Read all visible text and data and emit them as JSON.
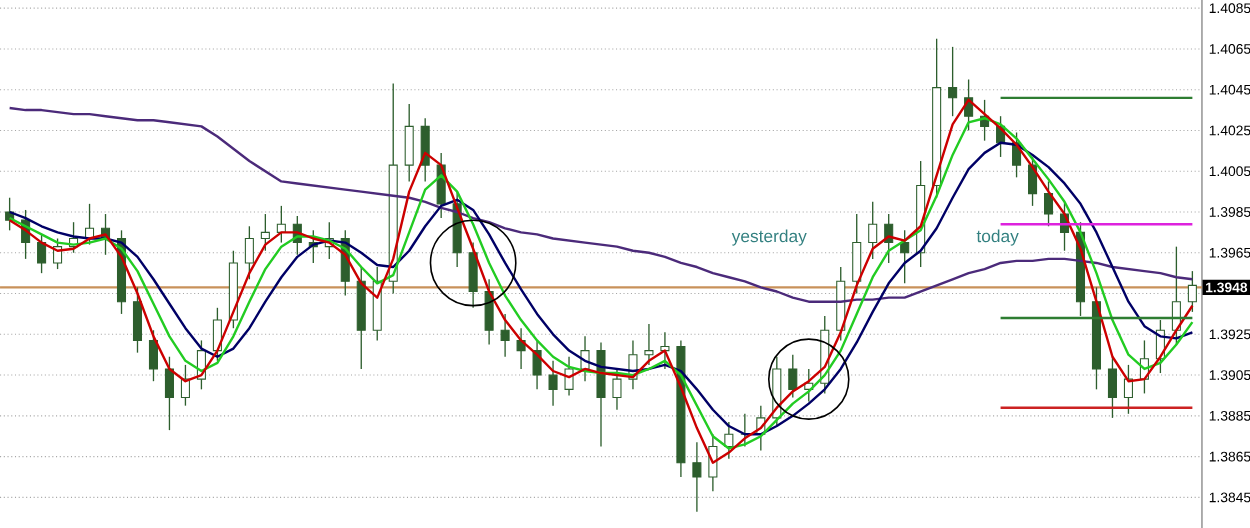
{
  "chart_data": {
    "type": "candlestick",
    "categories": [
      null,
      null,
      null,
      null,
      null,
      null,
      null,
      null,
      null,
      null,
      null,
      null,
      null,
      null,
      null,
      null,
      null,
      null,
      null,
      null,
      null,
      null,
      null,
      null,
      null,
      null,
      null,
      null,
      null,
      null,
      null,
      null,
      null,
      null,
      null,
      null,
      null,
      null,
      null,
      null,
      null,
      null,
      null,
      null,
      null,
      null,
      null,
      null,
      null,
      null,
      null,
      null,
      null,
      null,
      null,
      null,
      null,
      null,
      null,
      null,
      null,
      null,
      null,
      null,
      null,
      null,
      null,
      null,
      null,
      null,
      null,
      null,
      null,
      null,
      null
    ],
    "color": "#2d5e2d",
    "ohlc": [
      [
        1.3985,
        1.3992,
        1.3976,
        1.3981
      ],
      [
        1.3981,
        1.3986,
        1.3962,
        1.397
      ],
      [
        1.397,
        1.3974,
        1.3955,
        1.396
      ],
      [
        1.396,
        1.3972,
        1.3957,
        1.3968
      ],
      [
        1.3968,
        1.398,
        1.3965,
        1.3972
      ],
      [
        1.3972,
        1.3989,
        1.3969,
        1.3977
      ],
      [
        1.3977,
        1.3984,
        1.3964,
        1.3972
      ],
      [
        1.3972,
        1.3976,
        1.3935,
        1.3941
      ],
      [
        1.3941,
        1.3948,
        1.3916,
        1.3922
      ],
      [
        1.3922,
        1.3927,
        1.3902,
        1.3908
      ],
      [
        1.3908,
        1.3914,
        1.3878,
        1.3894
      ],
      [
        1.3894,
        1.391,
        1.389,
        1.3903
      ],
      [
        1.3903,
        1.3922,
        1.3898,
        1.3917
      ],
      [
        1.3917,
        1.3938,
        1.3912,
        1.3932
      ],
      [
        1.3932,
        1.3966,
        1.3928,
        1.396
      ],
      [
        1.396,
        1.3978,
        1.3952,
        1.3972
      ],
      [
        1.3972,
        1.3984,
        1.3966,
        1.3975
      ],
      [
        1.3975,
        1.3988,
        1.397,
        1.3979
      ],
      [
        1.3979,
        1.3983,
        1.3964,
        1.397
      ],
      [
        1.397,
        1.3976,
        1.396,
        1.3968
      ],
      [
        1.3968,
        1.398,
        1.3962,
        1.3972
      ],
      [
        1.3972,
        1.3976,
        1.3944,
        1.3951
      ],
      [
        1.3951,
        1.3958,
        1.3908,
        1.3927
      ],
      [
        1.3927,
        1.3958,
        1.3922,
        1.3951
      ],
      [
        1.3951,
        1.4048,
        1.3945,
        1.4008
      ],
      [
        1.4008,
        1.4038,
        1.4,
        1.4027
      ],
      [
        1.4027,
        1.4031,
        1.4,
        1.4008
      ],
      [
        1.4008,
        1.4014,
        1.3982,
        1.3989
      ],
      [
        1.3989,
        1.3995,
        1.3958,
        1.3965
      ],
      [
        1.3965,
        1.397,
        1.3938,
        1.3946
      ],
      [
        1.3946,
        1.3952,
        1.392,
        1.3927
      ],
      [
        1.3927,
        1.3935,
        1.3914,
        1.3922
      ],
      [
        1.3922,
        1.3928,
        1.3908,
        1.3917
      ],
      [
        1.3917,
        1.3922,
        1.3898,
        1.3905
      ],
      [
        1.3905,
        1.3912,
        1.389,
        1.3898
      ],
      [
        1.3898,
        1.3914,
        1.3895,
        1.3908
      ],
      [
        1.3908,
        1.3924,
        1.3902,
        1.3917
      ],
      [
        1.3917,
        1.3921,
        1.387,
        1.3894
      ],
      [
        1.3894,
        1.3908,
        1.3888,
        1.3903
      ],
      [
        1.3903,
        1.3922,
        1.3898,
        1.3915
      ],
      [
        1.3915,
        1.393,
        1.391,
        1.3917
      ],
      [
        1.3917,
        1.3926,
        1.3908,
        1.3919
      ],
      [
        1.3919,
        1.3922,
        1.3855,
        1.3862
      ],
      [
        1.3862,
        1.3872,
        1.3838,
        1.3855
      ],
      [
        1.3855,
        1.3876,
        1.3848,
        1.387
      ],
      [
        1.387,
        1.3882,
        1.3864,
        1.3876
      ],
      [
        1.3876,
        1.3886,
        1.387,
        1.3876
      ],
      [
        1.3876,
        1.389,
        1.3868,
        1.3884
      ],
      [
        1.3884,
        1.3914,
        1.388,
        1.3908
      ],
      [
        1.3908,
        1.3915,
        1.3894,
        1.3898
      ],
      [
        1.3898,
        1.3908,
        1.3892,
        1.3901
      ],
      [
        1.3901,
        1.3934,
        1.3896,
        1.3927
      ],
      [
        1.3927,
        1.3958,
        1.3922,
        1.3951
      ],
      [
        1.3951,
        1.3984,
        1.3945,
        1.397
      ],
      [
        1.397,
        1.399,
        1.3962,
        1.3979
      ],
      [
        1.3979,
        1.3984,
        1.396,
        1.397
      ],
      [
        1.397,
        1.3976,
        1.395,
        1.3965
      ],
      [
        1.3965,
        1.401,
        1.3958,
        1.3998
      ],
      [
        1.3998,
        1.407,
        1.3992,
        1.4046
      ],
      [
        1.4046,
        1.4066,
        1.4032,
        1.4041
      ],
      [
        1.4041,
        1.405,
        1.4025,
        1.4032
      ],
      [
        1.4032,
        1.404,
        1.402,
        1.4027
      ],
      [
        1.4027,
        1.4032,
        1.4012,
        1.4019
      ],
      [
        1.4019,
        1.4024,
        1.4002,
        1.4008
      ],
      [
        1.4008,
        1.4012,
        1.3988,
        1.3994
      ],
      [
        1.3994,
        1.4,
        1.3978,
        1.3984
      ],
      [
        1.3984,
        1.399,
        1.3966,
        1.3975
      ],
      [
        1.3975,
        1.398,
        1.3934,
        1.3941
      ],
      [
        1.3941,
        1.3948,
        1.3898,
        1.3908
      ],
      [
        1.3908,
        1.3914,
        1.3884,
        1.3894
      ],
      [
        1.3894,
        1.391,
        1.3886,
        1.3903
      ],
      [
        1.3903,
        1.3922,
        1.3896,
        1.3913
      ],
      [
        1.3913,
        1.3932,
        1.3906,
        1.3927
      ],
      [
        1.3927,
        1.3968,
        1.392,
        1.3941
      ],
      [
        1.3941,
        1.3956,
        1.3936,
        1.3949
      ]
    ],
    "series": [
      {
        "type": "line",
        "color": "#4b2a7a",
        "values": [
          1.4036,
          1.4035,
          1.4035,
          1.4034,
          1.4033,
          1.4033,
          1.4032,
          1.4031,
          1.403,
          1.403,
          1.4029,
          1.4028,
          1.4027,
          1.4022,
          1.4016,
          1.401,
          1.4005,
          1.4,
          1.3999,
          1.3998,
          1.3997,
          1.3996,
          1.3995,
          1.3994,
          1.3993,
          1.3992,
          1.399,
          1.3987,
          1.3985,
          1.3982,
          1.398,
          1.3977,
          1.3975,
          1.3974,
          1.3972,
          1.3971,
          1.397,
          1.3969,
          1.3968,
          1.3966,
          1.3965,
          1.3963,
          1.396,
          1.3958,
          1.3955,
          1.3953,
          1.3951,
          1.3948,
          1.3946,
          1.3943,
          1.3941,
          1.3941,
          1.3941,
          1.3942,
          1.3942,
          1.3943,
          1.3943,
          1.3946,
          1.3949,
          1.3952,
          1.3955,
          1.3957,
          1.396,
          1.3961,
          1.3961,
          1.3962,
          1.3962,
          1.3961,
          1.396,
          1.3958,
          1.3957,
          1.3956,
          1.3955,
          1.3953,
          1.3952
        ]
      },
      {
        "type": "line",
        "color": "#000066",
        "values": [
          1.3985,
          1.3982,
          1.3978,
          1.3975,
          1.3973,
          1.3972,
          1.3972,
          1.397,
          1.3963,
          1.3952,
          1.394,
          1.3928,
          1.3918,
          1.3914,
          1.3918,
          1.3928,
          1.3941,
          1.3953,
          1.3963,
          1.3969,
          1.3971,
          1.397,
          1.3965,
          1.3959,
          1.3958,
          1.3966,
          1.3978,
          1.3988,
          1.3991,
          1.3986,
          1.3974,
          1.396,
          1.3947,
          1.3935,
          1.3925,
          1.3917,
          1.3912,
          1.3909,
          1.3908,
          1.3907,
          1.3908,
          1.391,
          1.3907,
          1.3898,
          1.3888,
          1.388,
          1.3876,
          1.3876,
          1.388,
          1.3885,
          1.3891,
          1.3898,
          1.3908,
          1.3921,
          1.3936,
          1.395,
          1.396,
          1.3966,
          1.3977,
          1.3992,
          1.4006,
          1.4014,
          1.4019,
          1.4018,
          1.4013,
          1.4007,
          1.3999,
          1.3989,
          1.3975,
          1.3958,
          1.3941,
          1.3929,
          1.3924,
          1.3923,
          1.3926
        ]
      },
      {
        "type": "line",
        "color": "#22cc22",
        "values": [
          1.3982,
          1.3978,
          1.3974,
          1.397,
          1.3969,
          1.397,
          1.3972,
          1.3967,
          1.3956,
          1.394,
          1.3924,
          1.3912,
          1.3907,
          1.3911,
          1.3924,
          1.3941,
          1.3957,
          1.3968,
          1.3973,
          1.3973,
          1.3971,
          1.3967,
          1.3958,
          1.395,
          1.3954,
          1.3975,
          1.3996,
          1.4003,
          1.3995,
          1.3979,
          1.396,
          1.3944,
          1.3932,
          1.3922,
          1.3914,
          1.3909,
          1.3907,
          1.3906,
          1.3906,
          1.3905,
          1.3908,
          1.3912,
          1.3905,
          1.389,
          1.3875,
          1.3869,
          1.3871,
          1.3875,
          1.3883,
          1.3891,
          1.3897,
          1.3905,
          1.3917,
          1.3935,
          1.3953,
          1.3966,
          1.3971,
          1.3976,
          1.3993,
          1.4013,
          1.4029,
          1.4031,
          1.4028,
          1.4021,
          1.4011,
          1.4001,
          1.399,
          1.3975,
          1.3955,
          1.3932,
          1.3915,
          1.3908,
          1.3911,
          1.392,
          1.3931
        ]
      },
      {
        "type": "line",
        "color": "#cc0000",
        "values": [
          1.3981,
          1.3976,
          1.397,
          1.3966,
          1.3967,
          1.3972,
          1.3974,
          1.3963,
          1.3945,
          1.3924,
          1.3908,
          1.3902,
          1.3905,
          1.3917,
          1.3936,
          1.3955,
          1.3969,
          1.3975,
          1.3975,
          1.3972,
          1.397,
          1.3964,
          1.395,
          1.3943,
          1.3962,
          1.3995,
          1.4014,
          1.4008,
          1.3987,
          1.3967,
          1.3946,
          1.3932,
          1.3922,
          1.3915,
          1.3907,
          1.3904,
          1.3908,
          1.3906,
          1.3905,
          1.3904,
          1.3912,
          1.3917,
          1.3899,
          1.3879,
          1.3862,
          1.3867,
          1.3874,
          1.3879,
          1.3889,
          1.3897,
          1.3902,
          1.3909,
          1.3926,
          1.3949,
          1.3967,
          1.3973,
          1.3971,
          1.3978,
          1.4003,
          1.4028,
          1.404,
          1.4033,
          1.4026,
          1.4018,
          1.4007,
          1.3995,
          1.3984,
          1.3967,
          1.3941,
          1.3914,
          1.3902,
          1.3903,
          1.3914,
          1.3927,
          1.3939
        ]
      },
      {
        "type": "line",
        "color": "#2e7d32",
        "values": [
          null,
          null,
          null,
          null,
          null,
          null,
          null,
          null,
          null,
          null,
          null,
          null,
          null,
          null,
          null,
          null,
          null,
          null,
          null,
          null,
          null,
          null,
          null,
          null,
          null,
          null,
          null,
          null,
          null,
          null,
          null,
          null,
          null,
          null,
          null,
          null,
          null,
          null,
          null,
          null,
          null,
          null,
          null,
          null,
          null,
          null,
          null,
          null,
          null,
          null,
          null,
          null,
          null,
          null,
          null,
          null,
          null,
          null,
          null,
          null,
          null,
          null,
          1.4041,
          1.4041,
          1.4041,
          1.4041,
          1.4041,
          1.4041,
          1.4041,
          1.4041,
          1.4041,
          1.4041,
          1.4041,
          1.4041,
          1.4041
        ]
      },
      {
        "type": "line",
        "color": "#dd22dd",
        "values": [
          null,
          null,
          null,
          null,
          null,
          null,
          null,
          null,
          null,
          null,
          null,
          null,
          null,
          null,
          null,
          null,
          null,
          null,
          null,
          null,
          null,
          null,
          null,
          null,
          null,
          null,
          null,
          null,
          null,
          null,
          null,
          null,
          null,
          null,
          null,
          null,
          null,
          null,
          null,
          null,
          null,
          null,
          null,
          null,
          null,
          null,
          null,
          null,
          null,
          null,
          null,
          null,
          null,
          null,
          null,
          null,
          null,
          null,
          null,
          null,
          null,
          null,
          1.3979,
          1.3979,
          1.3979,
          1.3979,
          1.3979,
          1.3979,
          1.3979,
          1.3979,
          1.3979,
          1.3979,
          1.3979,
          1.3979,
          1.3979
        ]
      },
      {
        "type": "line",
        "color": "#2e7d32",
        "values": [
          null,
          null,
          null,
          null,
          null,
          null,
          null,
          null,
          null,
          null,
          null,
          null,
          null,
          null,
          null,
          null,
          null,
          null,
          null,
          null,
          null,
          null,
          null,
          null,
          null,
          null,
          null,
          null,
          null,
          null,
          null,
          null,
          null,
          null,
          null,
          null,
          null,
          null,
          null,
          null,
          null,
          null,
          null,
          null,
          null,
          null,
          null,
          null,
          null,
          null,
          null,
          null,
          null,
          null,
          null,
          null,
          null,
          null,
          null,
          null,
          null,
          null,
          1.3933,
          1.3933,
          1.3933,
          1.3933,
          1.3933,
          1.3933,
          1.3933,
          1.3933,
          1.3933,
          1.3933,
          1.3933,
          1.3933,
          1.3933
        ]
      },
      {
        "type": "line",
        "color": "#cc2222",
        "values": [
          null,
          null,
          null,
          null,
          null,
          null,
          null,
          null,
          null,
          null,
          null,
          null,
          null,
          null,
          null,
          null,
          null,
          null,
          null,
          null,
          null,
          null,
          null,
          null,
          null,
          null,
          null,
          null,
          null,
          null,
          null,
          null,
          null,
          null,
          null,
          null,
          null,
          null,
          null,
          null,
          null,
          null,
          null,
          null,
          null,
          null,
          null,
          null,
          null,
          null,
          null,
          null,
          null,
          null,
          null,
          null,
          null,
          null,
          null,
          null,
          null,
          null,
          1.3889,
          1.3889,
          1.3889,
          1.3889,
          1.3889,
          1.3889,
          1.3889,
          1.3889,
          1.3889,
          1.3889,
          1.3889,
          1.3889,
          1.3889
        ]
      }
    ],
    "ref_lines": [
      {
        "axis": "y",
        "value": 1.3948,
        "label": "1.3948",
        "color": "#c8915a"
      }
    ],
    "annotations": [
      "yesterday",
      "today"
    ],
    "ylim": [
      1.383,
      1.4089
    ],
    "yticks": [
      1.3845,
      1.3865,
      1.3885,
      1.3905,
      1.3925,
      {
        "value": 1.3945,
        "label": null
      },
      1.3965,
      1.3985,
      1.4005,
      1.4025,
      1.4045,
      1.4065,
      1.4085
    ],
    "grid": true,
    "tick_labels": "y"
  }
}
